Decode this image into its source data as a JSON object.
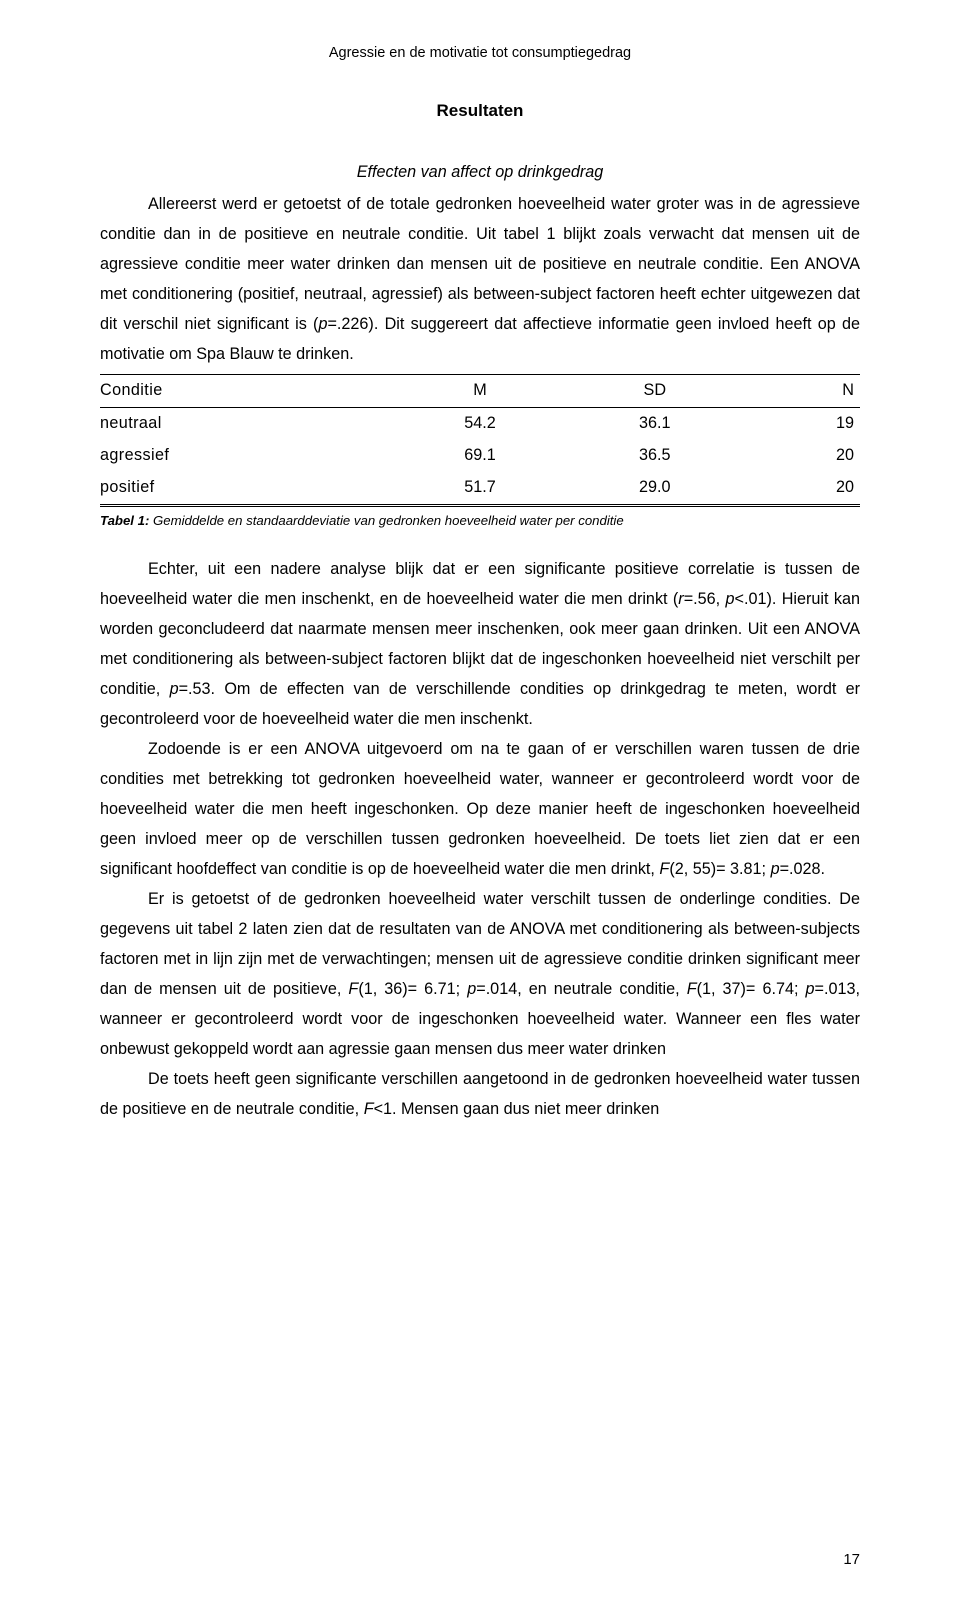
{
  "header": {
    "running_title": "Agressie en de motivatie tot consumptiegedrag"
  },
  "section": {
    "heading": "Resultaten",
    "subheading": "Effecten van affect op drinkgedrag"
  },
  "para1": {
    "s1": "Allereerst werd er getoetst of de totale gedronken hoeveelheid water groter was in de agressieve conditie dan in de positieve en neutrale conditie. Uit tabel 1 blijkt zoals verwacht dat mensen uit de agressieve conditie meer water drinken dan mensen uit de positieve en neutrale conditie. Een ANOVA met conditionering (positief, neutraal, agressief) als between-subject factoren heeft echter uitgewezen dat dit verschil niet significant is (",
    "p_lbl": "p",
    "p_val": "=.226). Dit suggereert dat affectieve informatie geen invloed heeft op de motivatie om Spa Blauw te drinken."
  },
  "table1": {
    "columns": [
      "Conditie",
      "M",
      "SD",
      "N"
    ],
    "rows": [
      [
        "neutraal",
        "54.2",
        "36.1",
        "19"
      ],
      [
        "agressief",
        "69.1",
        "36.5",
        "20"
      ],
      [
        "positief",
        "51.7",
        "29.0",
        "20"
      ]
    ],
    "caption_label": "Tabel 1:",
    "caption_text": " Gemiddelde en standaarddeviatie van gedronken hoeveelheid water per conditie"
  },
  "para2": {
    "a": "Echter, uit een nadere analyse blijk dat er een significante positieve correlatie is tussen de hoeveelheid water die men inschenkt, en de hoeveelheid water die men drinkt (",
    "r_lbl": "r",
    "r_eq": "=.56, ",
    "p_lbl": "p",
    "p_eq": "<.01). Hieruit kan worden geconcludeerd dat naarmate mensen meer inschenken, ook meer gaan drinken. Uit een ANOVA met conditionering als between-subject factoren blijkt dat de ingeschonken hoeveelheid niet verschilt per conditie, ",
    "p2_lbl": "p",
    "p2_eq": "=.53. Om de effecten van de verschillende condities op drinkgedrag te meten, wordt er gecontroleerd voor de hoeveelheid water die men inschenkt."
  },
  "para3": {
    "a": "Zodoende is er een ANOVA uitgevoerd om na te gaan of er verschillen waren tussen de drie condities met betrekking tot gedronken hoeveelheid water, wanneer er gecontroleerd wordt voor de hoeveelheid water die men heeft ingeschonken. Op deze manier heeft de ingeschonken hoeveelheid geen invloed meer op de verschillen tussen gedronken hoeveelheid. De toets liet zien dat er een significant hoofdeffect van conditie is op de hoeveelheid water die men drinkt, ",
    "F_lbl": "F",
    "F_val": "(2, 55)= 3.81; ",
    "p_lbl": "p",
    "p_val": "=.028."
  },
  "para4": {
    "a": "Er is getoetst of de gedronken hoeveelheid water verschilt tussen de onderlinge condities. De gegevens uit tabel 2 laten zien dat de resultaten van de ANOVA met conditionering als between-subjects factoren met in lijn zijn met de verwachtingen; mensen uit de agressieve conditie drinken significant meer dan de mensen uit de positieve, ",
    "F1_lbl": "F",
    "F1_val": "(1, 36)= 6.71; ",
    "p1_lbl": "p",
    "p1_val": "=.014, en neutrale conditie, ",
    "F2_lbl": "F",
    "F2_val": "(1, 37)= 6.74; ",
    "p2_lbl": "p",
    "p2_val": "=.013, wanneer er gecontroleerd wordt voor de ingeschonken hoeveelheid water. Wanneer een fles water onbewust gekoppeld wordt aan agressie gaan mensen dus meer water drinken"
  },
  "para5": {
    "a": "De toets heeft geen significante verschillen aangetoond in de gedronken hoeveelheid water tussen de positieve en de neutrale conditie, ",
    "F_lbl": "F",
    "F_val": "<1. Mensen gaan dus niet meer drinken"
  },
  "page": {
    "number": "17"
  }
}
